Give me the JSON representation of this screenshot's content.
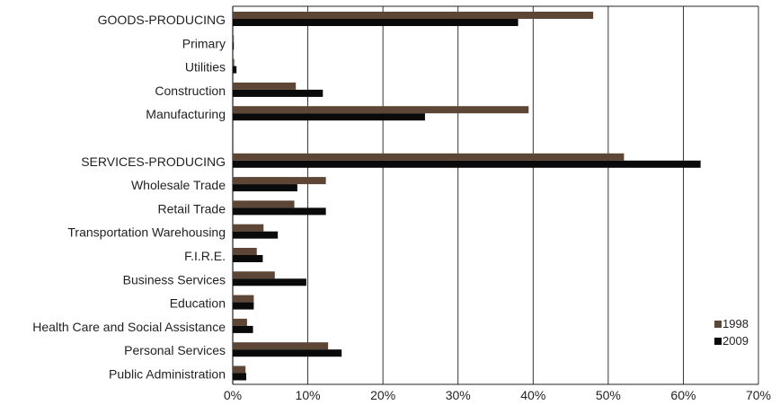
{
  "chart_data": {
    "type": "bar",
    "orientation": "horizontal",
    "title": "",
    "xlabel": "",
    "ylabel": "",
    "xlim": [
      0,
      70
    ],
    "x_ticks": [
      "0%",
      "10%",
      "20%",
      "30%",
      "40%",
      "50%",
      "60%",
      "70%"
    ],
    "grid": "vertical",
    "legend_position": "bottom-right",
    "categories": [
      "GOODS-PRODUCING",
      "Primary",
      "Utilities",
      "Construction",
      "Manufacturing",
      "",
      "SERVICES-PRODUCING",
      "Wholesale Trade",
      "Retail Trade",
      "Transportation Warehousing",
      "F.I.R.E.",
      "Business Services",
      "Education",
      "Health Care and Social Assistance",
      "Personal Services",
      "Public Administration"
    ],
    "series": [
      {
        "name": "1998",
        "color": "#5e4636",
        "values": [
          48.0,
          0.1,
          0.2,
          8.4,
          39.4,
          null,
          52.1,
          12.4,
          8.2,
          4.1,
          3.2,
          5.6,
          2.8,
          1.9,
          12.7,
          1.7
        ]
      },
      {
        "name": "2009",
        "color": "#0a0a0a",
        "values": [
          38.0,
          0.1,
          0.5,
          12.0,
          25.6,
          null,
          62.3,
          8.6,
          12.4,
          6.0,
          4.0,
          9.8,
          2.8,
          2.7,
          14.5,
          1.8
        ]
      }
    ]
  }
}
